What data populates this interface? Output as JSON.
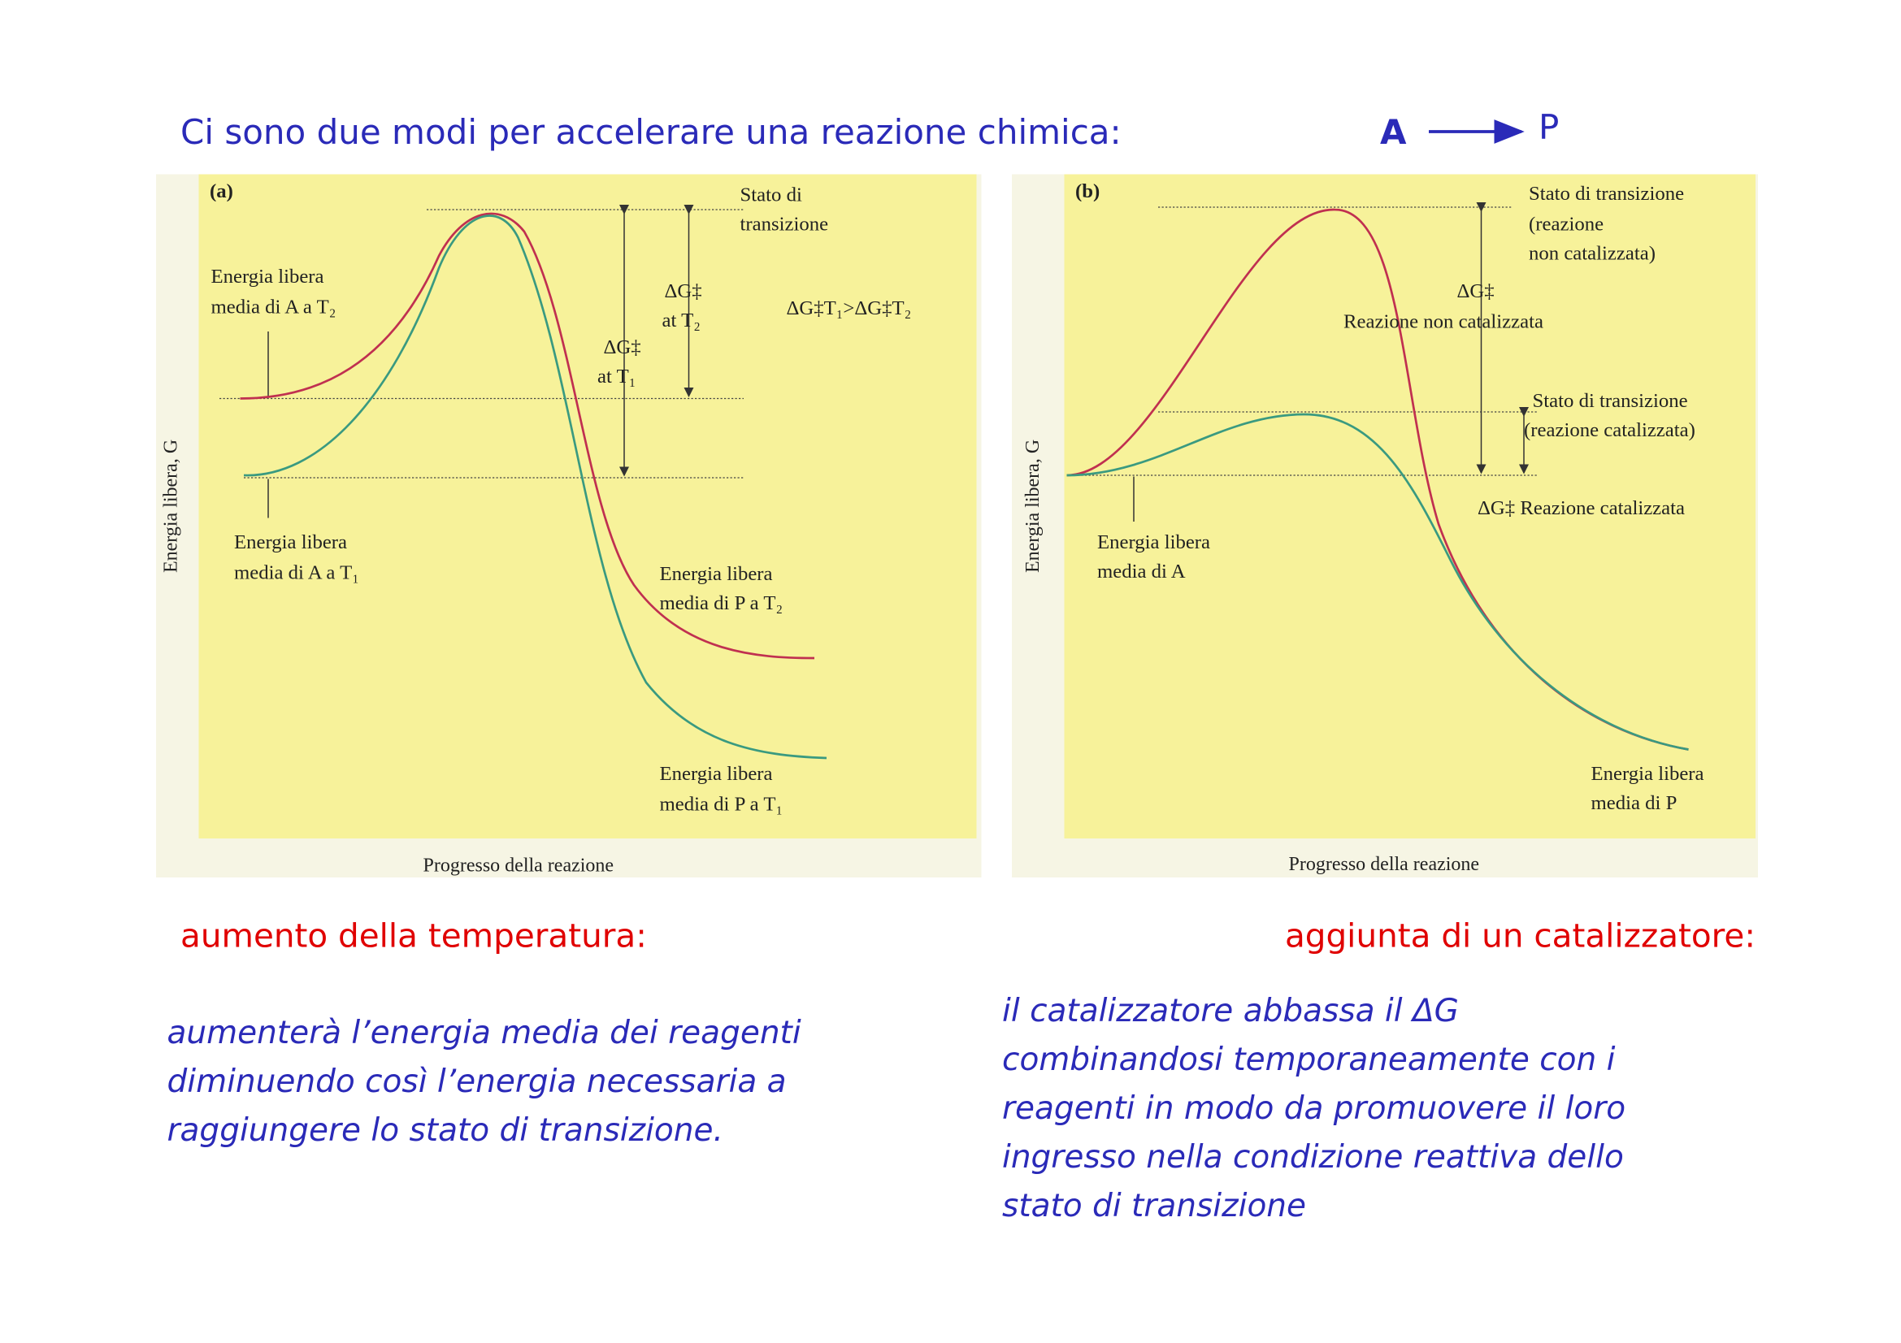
{
  "header": {
    "title": "Ci sono due modi per accelerare una reazione chimica:",
    "reactant": "A",
    "product": "P"
  },
  "panels": [
    {
      "tag": "(a)",
      "y_axis": "Energia libera, G",
      "x_axis": "Progresso della reazione",
      "labels": [
        {
          "lines": [
            "Stato di",
            "transizione"
          ]
        },
        {
          "lines": [
            "Energia libera",
            "media di A a T₂"
          ]
        },
        {
          "lines": [
            "ΔG‡",
            "at T₂"
          ]
        },
        {
          "lines": [
            "ΔG‡T₁>ΔG‡T₂"
          ]
        },
        {
          "lines": [
            "ΔG‡",
            "at T₁"
          ]
        },
        {
          "lines": [
            "Energia libera",
            "media di A a T₁"
          ]
        },
        {
          "lines": [
            "Energia libera",
            "media di P a T₂"
          ]
        },
        {
          "lines": [
            "Energia libera",
            "media di P a T₁"
          ]
        }
      ]
    },
    {
      "tag": "(b)",
      "y_axis": "Energia libera, G",
      "x_axis": "Progresso della reazione",
      "labels": [
        {
          "lines": [
            "Stato di transizione",
            "(reazione",
            "non catalizzata)"
          ]
        },
        {
          "lines": [
            "ΔG‡",
            "Reazione non catalizzata"
          ]
        },
        {
          "lines": [
            "Stato di transizione",
            "(reazione catalizzata)"
          ]
        },
        {
          "lines": [
            "ΔG‡ Reazione catalizzata"
          ]
        },
        {
          "lines": [
            "Energia libera",
            "media di A"
          ]
        },
        {
          "lines": [
            "Energia libera",
            "media di P"
          ]
        }
      ]
    }
  ],
  "sections": [
    {
      "heading": "aumento della temperatura:",
      "body": [
        "aumenterà l’energia media dei reagenti",
        "diminuendo così l’energia necessaria a",
        "raggiungere lo stato di transizione."
      ]
    },
    {
      "heading": "aggiunta di un catalizzatore:",
      "body": [
        "il catalizzatore abbassa il ΔG",
        "combinandosi temporaneamente con i",
        "reagenti in modo da promuovere il loro",
        "ingresso nella condizione reattiva dello",
        "stato di transizione"
      ]
    }
  ]
}
